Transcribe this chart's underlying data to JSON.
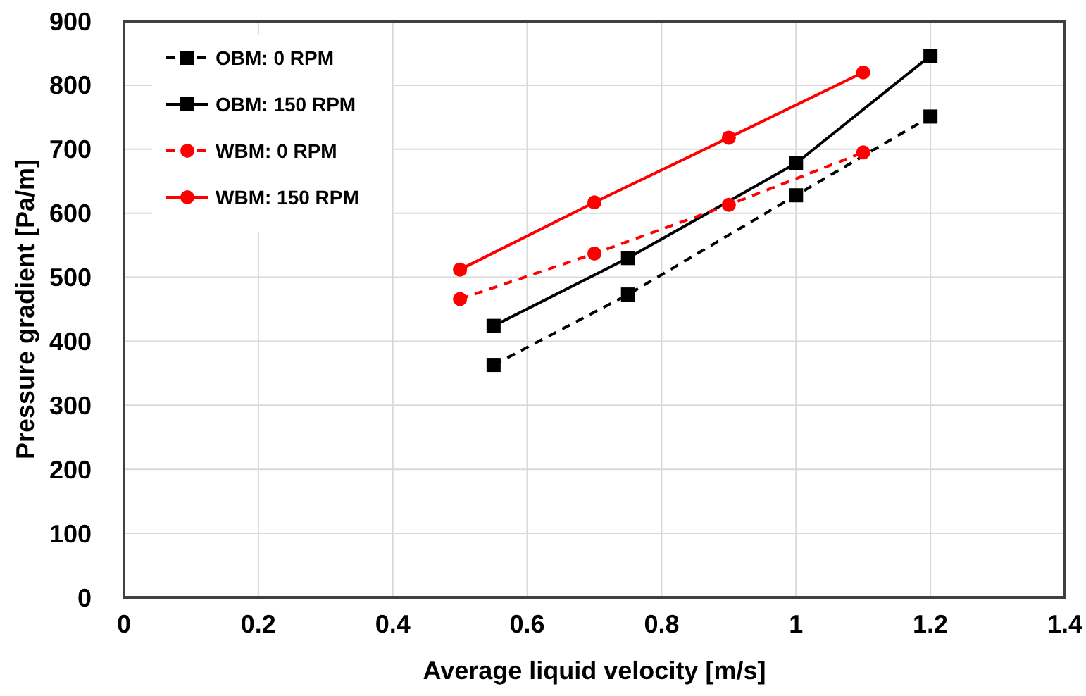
{
  "chart_data": {
    "type": "line",
    "xlabel": "Average liquid velocity [m/s]",
    "ylabel": "Pressure gradient [Pa/m]",
    "xlim": [
      0,
      1.4
    ],
    "xticks": [
      0,
      0.2,
      0.4,
      0.6,
      0.8,
      1,
      1.2,
      1.4
    ],
    "ylim": [
      0,
      900
    ],
    "yticks": [
      0,
      100,
      200,
      300,
      400,
      500,
      600,
      700,
      800,
      900
    ],
    "grid": true,
    "legend": "top left",
    "series": [
      {
        "name": "OBM: 0 RPM",
        "color": "#000000",
        "x": [
          0.55,
          0.75,
          1,
          1.2
        ],
        "values": [
          363,
          473,
          628,
          751
        ],
        "marker": "square",
        "line_style": "dashed"
      },
      {
        "name": "OBM: 150 RPM",
        "color": "#000000",
        "x": [
          0.55,
          0.75,
          1,
          1.2
        ],
        "values": [
          424,
          530,
          678,
          846
        ],
        "marker": "square",
        "line_style": "solid"
      },
      {
        "name": "WBM: 0 RPM",
        "color": "#ff0000",
        "x": [
          0.5,
          0.7,
          0.9,
          1.1
        ],
        "values": [
          466,
          537,
          613,
          695
        ],
        "marker": "circle",
        "line_style": "dashed"
      },
      {
        "name": "WBM: 150 RPM",
        "color": "#ff0000",
        "x": [
          0.5,
          0.7,
          0.9,
          1.1
        ],
        "values": [
          512,
          617,
          718,
          820
        ],
        "marker": "circle",
        "line_style": "solid"
      }
    ]
  }
}
